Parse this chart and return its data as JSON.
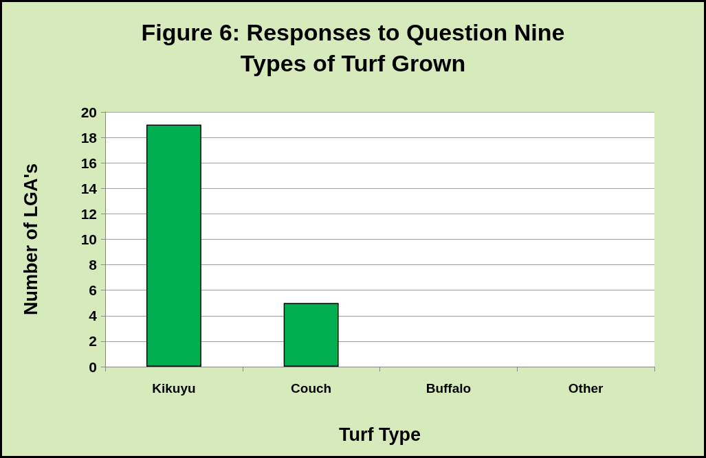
{
  "chart_data": {
    "type": "bar",
    "title": "Figure 6: Responses to Question Nine",
    "subtitle": "Types of Turf Grown",
    "xlabel": "Turf Type",
    "ylabel": "Number of LGA's",
    "categories": [
      "Kikuyu",
      "Couch",
      "Buffalo",
      "Other"
    ],
    "values": [
      19,
      5,
      0,
      0
    ],
    "color": "#00b050",
    "ylim": [
      0,
      20
    ],
    "yticks": [
      0,
      2,
      4,
      6,
      8,
      10,
      12,
      14,
      16,
      18,
      20
    ],
    "grid": "y"
  }
}
